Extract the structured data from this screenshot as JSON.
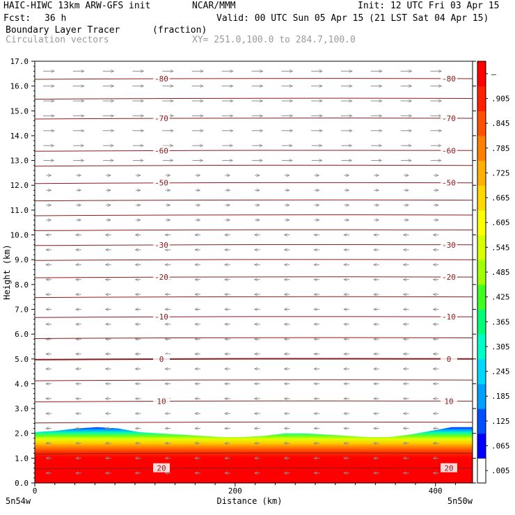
{
  "header": {
    "model": "HAIC-HIWC 13km ARW-GFS init",
    "org": "NCAR/MMM",
    "init": "Init: 12 UTC Fri 03 Apr 15",
    "fcst_label": "Fcst:",
    "fcst_value": "36 h",
    "valid": "Valid: 00 UTC Sun 05 Apr 15 (21 LST Sat 04 Apr 15)",
    "field": "Boundary Layer Tracer",
    "units": "(fraction)",
    "vectors": "Circulation vectors",
    "xy": "XY= 251.0,100.0 to 284.7,100.0"
  },
  "chart_data": {
    "type": "heatmap",
    "title": "Boundary Layer Tracer",
    "xlabel": "Distance (km)",
    "ylabel": "Height (km)",
    "xlim": [
      0,
      437
    ],
    "ylim": [
      0,
      17
    ],
    "x_ticks": [
      0,
      200,
      400
    ],
    "y_ticks": [
      "0.0",
      "1.0",
      "2.0",
      "3.0",
      "4.0",
      "5.0",
      "6.0",
      "7.0",
      "8.0",
      "9.0",
      "10.0",
      "11.0",
      "12.0",
      "13.0",
      "14.0",
      "15.0",
      "16.0",
      "17.0"
    ],
    "x_endpoints": {
      "left": "5n54w",
      "right": "5n50w"
    },
    "colorbar": {
      "labels": [
        ".005",
        ".065",
        ".125",
        ".185",
        ".245",
        ".305",
        ".365",
        ".425",
        ".485",
        ".545",
        ".605",
        ".665",
        ".725",
        ".785",
        ".845",
        ".905",
        "–"
      ],
      "colors": [
        "#ffffff",
        "#0000ff",
        "#0050ff",
        "#00a0ff",
        "#00d8ff",
        "#00ffc8",
        "#00ff78",
        "#40ff20",
        "#a0ff00",
        "#d8ff00",
        "#ffff00",
        "#ffd800",
        "#ffb000",
        "#ff8000",
        "#ff5000",
        "#ff2000",
        "#ff0000"
      ]
    },
    "tracer_top_km": [
      2.05,
      2.1,
      2.2,
      2.25,
      2.2,
      2.05,
      2.0,
      1.95,
      1.9,
      1.85,
      1.85,
      1.9,
      2.0,
      2.0,
      1.95,
      1.9,
      1.85,
      1.85,
      1.95,
      2.1,
      2.25,
      2.25
    ],
    "isotherms": [
      {
        "label": "-80",
        "height_km": 16.3
      },
      {
        "label": "-70",
        "height_km": 14.7
      },
      {
        "label": "-60",
        "height_km": 13.4
      },
      {
        "label": "-50",
        "height_km": 12.1
      },
      {
        "label": "-30",
        "height_km": 9.6
      },
      {
        "label": "-20",
        "height_km": 8.3
      },
      {
        "label": "-10",
        "height_km": 6.7
      },
      {
        "label": "0",
        "height_km": 5.0
      },
      {
        "label": "10",
        "height_km": 3.3
      },
      {
        "label": "20",
        "height_km": 0.6
      }
    ],
    "isotherms_unlabeled_km": [
      15.5,
      12.8,
      11.4,
      10.8,
      10.2,
      9.0,
      7.5,
      5.85,
      4.15,
      2.45,
      1.2
    ],
    "wind_regimes": [
      {
        "from_km": 12.5,
        "to_km": 17.0,
        "direction": "east",
        "strength": "strong"
      },
      {
        "from_km": 10.5,
        "to_km": 12.5,
        "direction": "east",
        "strength": "weak"
      },
      {
        "from_km": 0.0,
        "to_km": 10.5,
        "direction": "west",
        "strength": "weak"
      }
    ],
    "colors": {
      "isotherm": "#8b1a1a",
      "vector": "#8c8c8c"
    }
  }
}
